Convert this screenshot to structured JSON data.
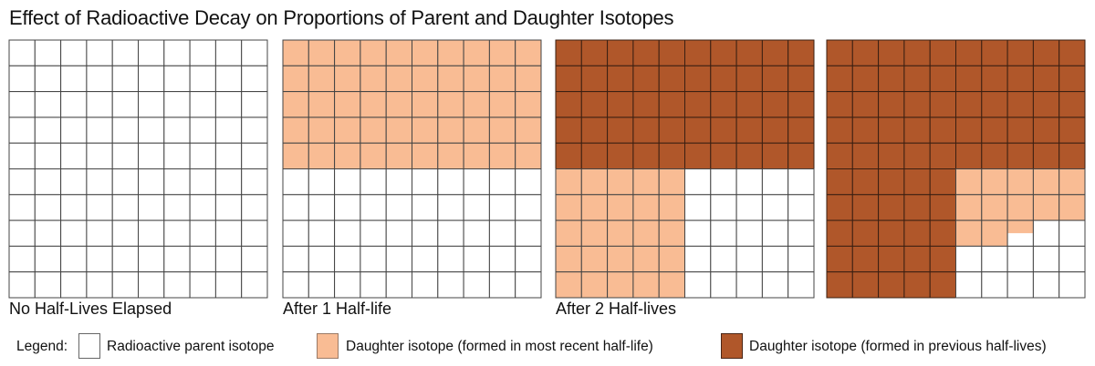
{
  "title": "Effect of Radioactive Decay on Proportions of Parent and Daughter Isotopes",
  "colors": {
    "parent": "#ffffff",
    "recent": "#F9BC94",
    "previous": "#B0572A"
  },
  "panels": [
    {
      "label": "No Half-Lives Elapsed",
      "cells": [
        "pppppppppp",
        "pppppppppp",
        "pppppppppp",
        "pppppppppp",
        "pppppppppp",
        "pppppppppp",
        "pppppppppp",
        "pppppppppp",
        "pppppppppp",
        "pppppppppp"
      ]
    },
    {
      "label": "After 1 Half-life",
      "cells": [
        "rrrrrrrrrr",
        "rrrrrrrrrr",
        "rrrrrrrrrr",
        "rrrrrrrrrr",
        "rrrrrrrrrr",
        "pppppppppp",
        "pppppppppp",
        "pppppppppp",
        "pppppppppp",
        "pppppppppp"
      ]
    },
    {
      "label": "After 2 Half-lives",
      "cells": [
        "oooooooooo",
        "oooooooooo",
        "oooooooooo",
        "oooooooooo",
        "oooooooooo",
        "rrrrrppppp",
        "rrrrrppppp",
        "rrrrrppppp",
        "rrrrrppppp",
        "rrrrrppppp"
      ]
    },
    {
      "label": "",
      "cells": [
        "oooooooooo",
        "oooooooooo",
        "oooooooooo",
        "oooooooooo",
        "oooooooooo",
        "ooooorrrrr",
        "ooooorrrrr",
        "ooooorrhpp",
        "oooooppppp",
        "oooooppppp"
      ]
    }
  ],
  "legend": {
    "label": "Legend:",
    "parent": "Radioactive parent isotope",
    "recent": "Daughter isotope (formed in most recent half-life)",
    "previous": "Daughter isotope (formed in previous half-lives)"
  }
}
